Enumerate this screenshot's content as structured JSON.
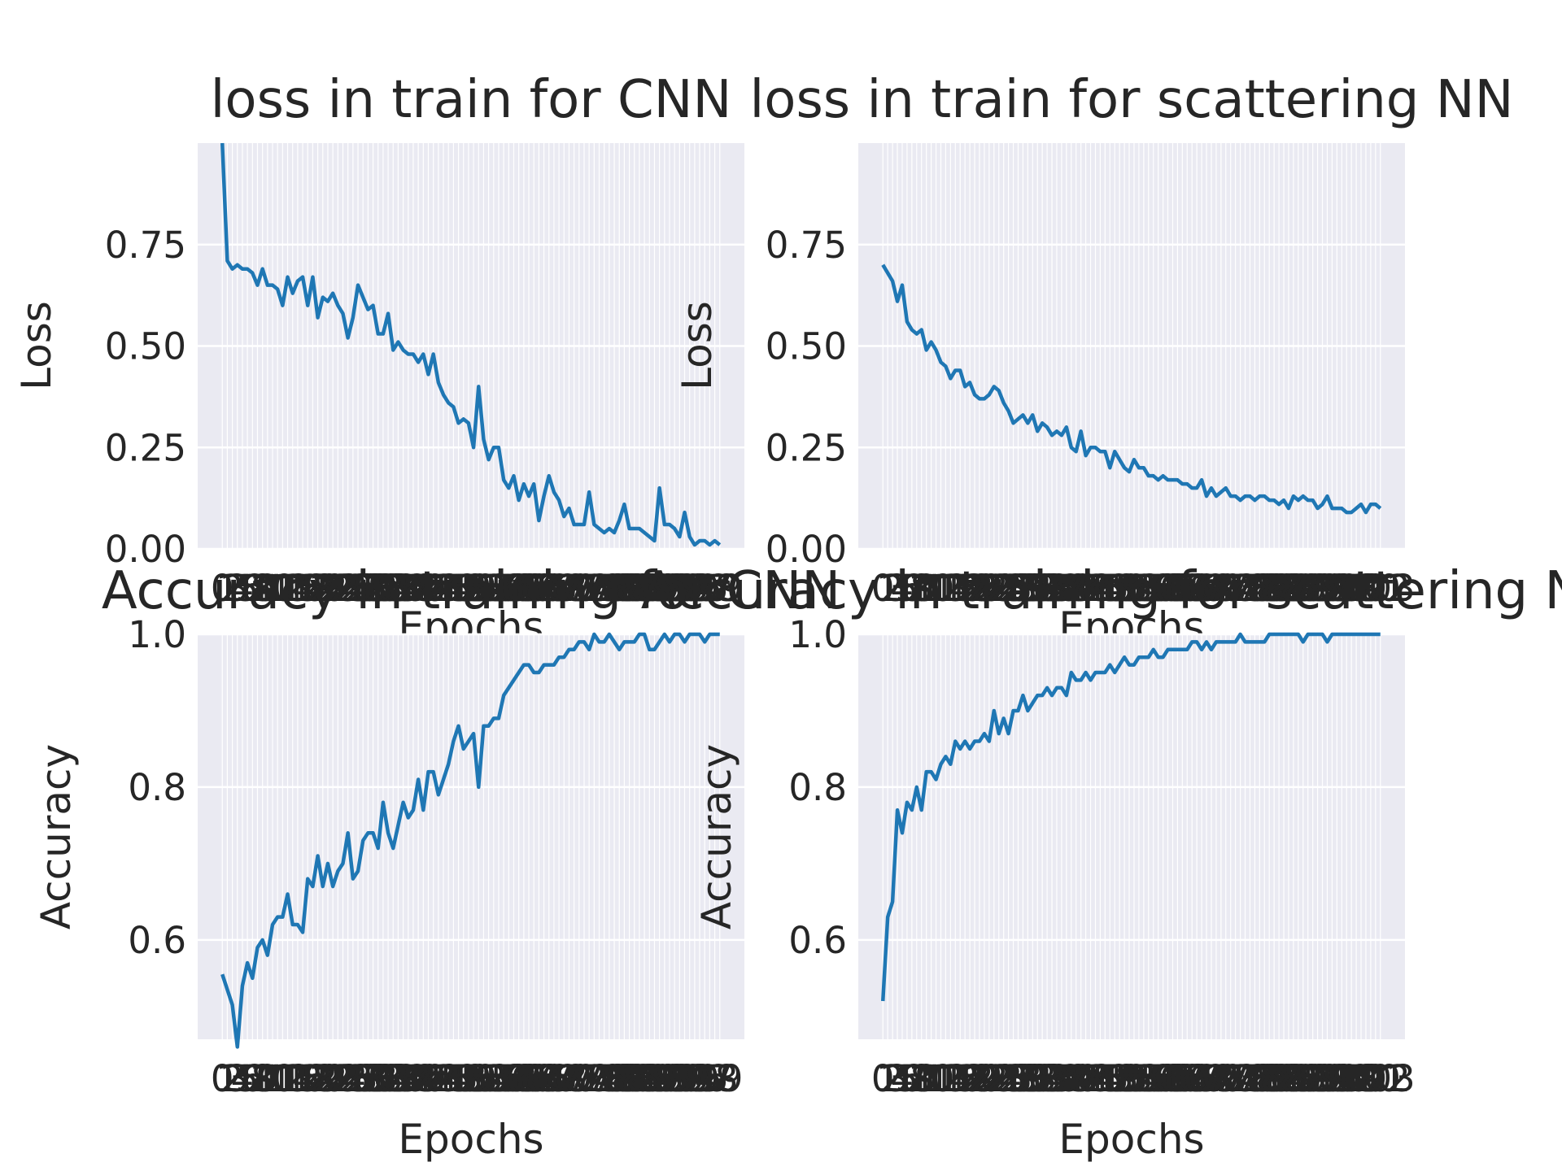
{
  "chart_data": [
    {
      "type": "line",
      "title": "loss in train for CNN",
      "xlabel": "Epochs",
      "ylabel": "Loss",
      "ylim": [
        0,
        1.0
      ],
      "yticks": [
        "0.00",
        "0.25",
        "0.50",
        "0.75"
      ],
      "grid": true,
      "color": "#1f77b4",
      "values": [
        1.0,
        0.71,
        0.69,
        0.7,
        0.69,
        0.69,
        0.68,
        0.65,
        0.69,
        0.65,
        0.65,
        0.64,
        0.6,
        0.67,
        0.63,
        0.66,
        0.67,
        0.6,
        0.67,
        0.57,
        0.62,
        0.61,
        0.63,
        0.6,
        0.58,
        0.52,
        0.57,
        0.65,
        0.62,
        0.59,
        0.6,
        0.53,
        0.53,
        0.58,
        0.49,
        0.51,
        0.49,
        0.48,
        0.48,
        0.46,
        0.48,
        0.43,
        0.48,
        0.41,
        0.38,
        0.36,
        0.35,
        0.31,
        0.32,
        0.31,
        0.25,
        0.4,
        0.27,
        0.22,
        0.25,
        0.25,
        0.17,
        0.15,
        0.18,
        0.12,
        0.16,
        0.13,
        0.16,
        0.07,
        0.13,
        0.18,
        0.14,
        0.12,
        0.08,
        0.1,
        0.06,
        0.06,
        0.06,
        0.14,
        0.06,
        0.05,
        0.04,
        0.05,
        0.04,
        0.07,
        0.11,
        0.05,
        0.05,
        0.05,
        0.04,
        0.03,
        0.02,
        0.15,
        0.06,
        0.06,
        0.05,
        0.03,
        0.09,
        0.03,
        0.01,
        0.02,
        0.02,
        0.01,
        0.02,
        0.01
      ]
    },
    {
      "type": "line",
      "title": "loss in train for scattering NN",
      "xlabel": "Epochs",
      "ylabel": "Loss",
      "ylim": [
        0,
        1.0
      ],
      "yticks": [
        "0.00",
        "0.25",
        "0.50",
        "0.75"
      ],
      "grid": true,
      "color": "#1f77b4",
      "values": [
        0.7,
        0.68,
        0.66,
        0.61,
        0.65,
        0.56,
        0.54,
        0.53,
        0.54,
        0.49,
        0.51,
        0.49,
        0.46,
        0.45,
        0.42,
        0.44,
        0.44,
        0.4,
        0.41,
        0.38,
        0.37,
        0.37,
        0.38,
        0.4,
        0.39,
        0.36,
        0.34,
        0.31,
        0.32,
        0.33,
        0.31,
        0.33,
        0.29,
        0.31,
        0.3,
        0.28,
        0.29,
        0.28,
        0.3,
        0.25,
        0.24,
        0.29,
        0.23,
        0.25,
        0.25,
        0.24,
        0.24,
        0.2,
        0.24,
        0.22,
        0.2,
        0.19,
        0.22,
        0.2,
        0.2,
        0.18,
        0.18,
        0.17,
        0.18,
        0.17,
        0.17,
        0.17,
        0.16,
        0.16,
        0.15,
        0.15,
        0.17,
        0.13,
        0.15,
        0.13,
        0.14,
        0.15,
        0.13,
        0.13,
        0.12,
        0.13,
        0.13,
        0.12,
        0.13,
        0.13,
        0.12,
        0.12,
        0.11,
        0.12,
        0.1,
        0.13,
        0.12,
        0.13,
        0.12,
        0.12,
        0.1,
        0.11,
        0.13,
        0.1,
        0.1,
        0.1,
        0.09,
        0.09,
        0.1,
        0.11,
        0.09,
        0.11,
        0.11,
        0.1
      ]
    },
    {
      "type": "line",
      "title": "Accuracy in training for CNN",
      "xlabel": "Epochs",
      "ylabel": "Accuracy",
      "ylim": [
        0.47,
        1.0
      ],
      "yticks": [
        "0.6",
        "0.8",
        "1.0"
      ],
      "grid": true,
      "color": "#1f77b4",
      "values": [
        0.555,
        0.535,
        0.515,
        0.46,
        0.54,
        0.57,
        0.55,
        0.59,
        0.6,
        0.58,
        0.62,
        0.63,
        0.63,
        0.66,
        0.62,
        0.62,
        0.61,
        0.68,
        0.67,
        0.71,
        0.67,
        0.7,
        0.67,
        0.69,
        0.7,
        0.74,
        0.68,
        0.69,
        0.73,
        0.74,
        0.74,
        0.72,
        0.78,
        0.74,
        0.72,
        0.75,
        0.78,
        0.76,
        0.77,
        0.81,
        0.77,
        0.82,
        0.82,
        0.79,
        0.81,
        0.83,
        0.86,
        0.88,
        0.85,
        0.86,
        0.87,
        0.8,
        0.88,
        0.88,
        0.89,
        0.89,
        0.92,
        0.93,
        0.94,
        0.95,
        0.96,
        0.96,
        0.95,
        0.95,
        0.96,
        0.96,
        0.96,
        0.97,
        0.97,
        0.98,
        0.98,
        0.99,
        0.99,
        0.98,
        1.0,
        0.99,
        0.99,
        1.0,
        0.99,
        0.98,
        0.99,
        0.99,
        0.99,
        1.0,
        1.0,
        0.98,
        0.98,
        0.99,
        1.0,
        0.99,
        1.0,
        1.0,
        0.99,
        1.0,
        1.0,
        1.0,
        0.99,
        1.0,
        1.0,
        1.0
      ]
    },
    {
      "type": "line",
      "title": "Accuracy in training for scattering NN",
      "xlabel": "Epochs",
      "ylabel": "Accuracy",
      "ylim": [
        0.47,
        1.0
      ],
      "yticks": [
        "0.6",
        "0.8",
        "1.0"
      ],
      "grid": true,
      "color": "#1f77b4",
      "values": [
        0.52,
        0.63,
        0.65,
        0.77,
        0.74,
        0.78,
        0.77,
        0.8,
        0.77,
        0.82,
        0.82,
        0.81,
        0.83,
        0.84,
        0.83,
        0.86,
        0.85,
        0.86,
        0.85,
        0.86,
        0.86,
        0.87,
        0.86,
        0.9,
        0.87,
        0.89,
        0.87,
        0.9,
        0.9,
        0.92,
        0.9,
        0.91,
        0.92,
        0.92,
        0.93,
        0.92,
        0.93,
        0.93,
        0.92,
        0.95,
        0.94,
        0.94,
        0.95,
        0.94,
        0.95,
        0.95,
        0.95,
        0.96,
        0.95,
        0.96,
        0.97,
        0.96,
        0.96,
        0.97,
        0.97,
        0.97,
        0.98,
        0.97,
        0.97,
        0.98,
        0.98,
        0.98,
        0.98,
        0.98,
        0.99,
        0.99,
        0.98,
        0.99,
        0.98,
        0.99,
        0.99,
        0.99,
        0.99,
        0.99,
        1.0,
        0.99,
        0.99,
        0.99,
        0.99,
        0.99,
        1.0,
        1.0,
        1.0,
        1.0,
        1.0,
        1.0,
        1.0,
        0.99,
        1.0,
        1.0,
        1.0,
        1.0,
        0.99,
        1.0,
        1.0,
        1.0,
        1.0,
        1.0,
        1.0,
        1.0,
        1.0,
        1.0,
        1.0,
        1.0
      ]
    }
  ]
}
